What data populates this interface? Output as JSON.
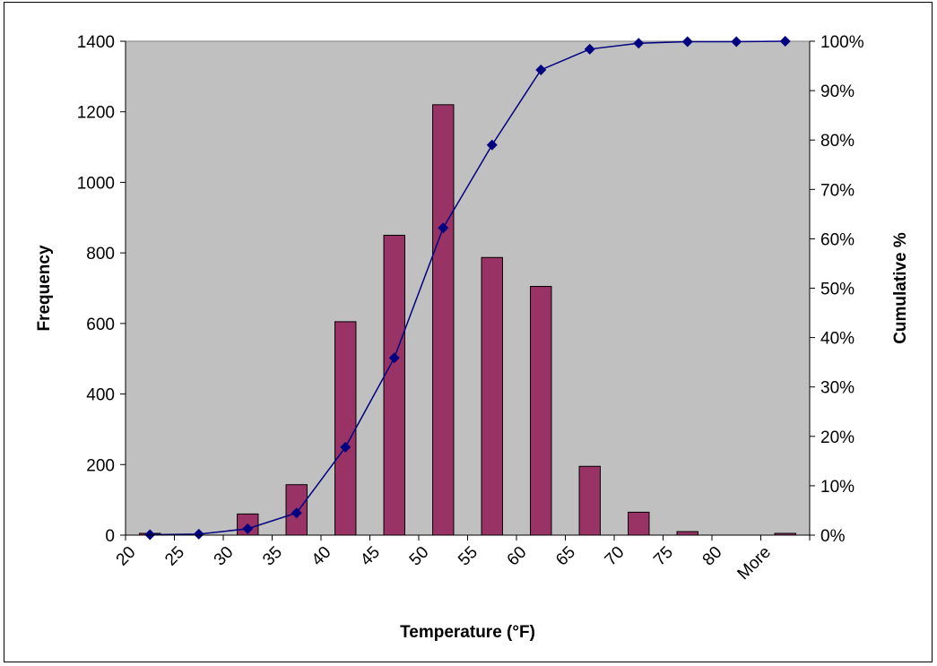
{
  "chart_data": {
    "type": "bar",
    "xlabel": "Temperature (°F)",
    "ylabel": "Frequency",
    "y2label": "Cumulative %",
    "categories": [
      "20",
      "25",
      "30",
      "35",
      "40",
      "45",
      "50",
      "55",
      "60",
      "65",
      "70",
      "75",
      "80",
      "More"
    ],
    "ylim": [
      0,
      1400
    ],
    "y_ticks": [
      0,
      200,
      400,
      600,
      800,
      1000,
      1200,
      1400
    ],
    "y2lim": [
      0,
      1
    ],
    "y2_ticks": [
      "0%",
      "10%",
      "20%",
      "30%",
      "40%",
      "50%",
      "60%",
      "70%",
      "80%",
      "90%",
      "100%"
    ],
    "series": [
      {
        "type": "bar",
        "axis": "left",
        "values": [
          5,
          0,
          60,
          143,
          605,
          850,
          1220,
          787,
          705,
          195,
          65,
          10,
          0,
          5
        ]
      },
      {
        "type": "line",
        "axis": "right",
        "values": [
          0.001,
          0.002,
          0.013,
          0.045,
          0.178,
          0.359,
          0.622,
          0.79,
          0.942,
          0.984,
          0.996,
          0.999,
          0.999,
          1.0
        ]
      }
    ],
    "colors": {
      "plot_background": "#c0c0c0",
      "bar_fill": "#993366",
      "bar_stroke": "#000000",
      "line": "#000080",
      "marker": "#000080"
    },
    "grid": false,
    "legend": "none"
  }
}
